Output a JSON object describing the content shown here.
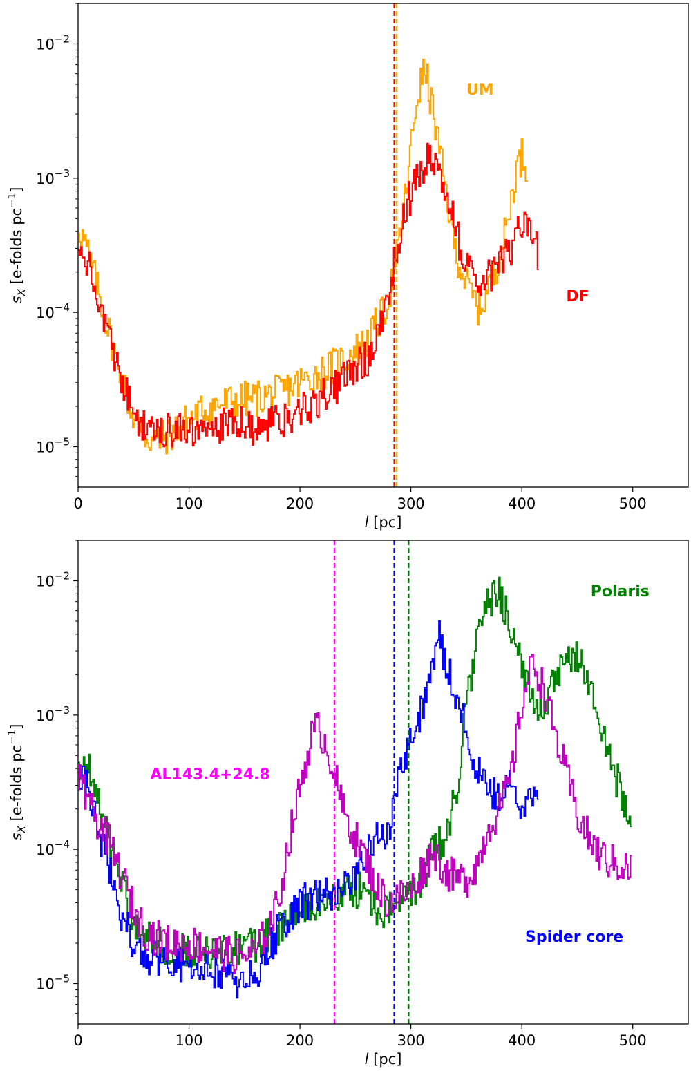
{
  "chart_data": [
    {
      "type": "line",
      "panel": "top",
      "xlabel": "l [pc]",
      "ylabel": "s_X [e-folds pc^-1]",
      "yscale": "log",
      "xlim": [
        0,
        550
      ],
      "ylim": [
        5e-06,
        0.02
      ],
      "xticks": [
        "0",
        "100",
        "200",
        "300",
        "400",
        "500"
      ],
      "yticks": [
        {
          "base": "10",
          "exp": "−2",
          "value": 0.01
        },
        {
          "base": "10",
          "exp": "−3",
          "value": 0.001
        },
        {
          "base": "10",
          "exp": "−4",
          "value": 0.0001
        },
        {
          "base": "10",
          "exp": "−5",
          "value": 1e-05
        }
      ],
      "series": [
        {
          "name": "UM",
          "color": "#ffa500",
          "vline": 287,
          "label_at": [
            350,
            0.0046
          ],
          "x": [
            0,
            10,
            20,
            30,
            40,
            50,
            60,
            70,
            80,
            100,
            120,
            140,
            160,
            180,
            200,
            220,
            240,
            260,
            275,
            285,
            295,
            305,
            312,
            320,
            330,
            340,
            350,
            360,
            365,
            375,
            385,
            395,
            400,
            405
          ],
          "y": [
            0.00045,
            0.00025,
            0.00012,
            6e-05,
            3e-05,
            1.6e-05,
            1.2e-05,
            1.1e-05,
            1.2e-05,
            1.6e-05,
            2e-05,
            2.2e-05,
            2.3e-05,
            2.5e-05,
            3e-05,
            3.6e-05,
            4.5e-05,
            6e-05,
            0.0001,
            0.0002,
            0.0008,
            0.004,
            0.0065,
            0.003,
            0.0009,
            0.00028,
            0.00016,
            0.00011,
            0.00012,
            0.0002,
            0.0004,
            0.0012,
            0.0015,
            0.0011
          ]
        },
        {
          "name": "DF",
          "color": "#ff0000",
          "vline": 285,
          "label_at": [
            440,
            0.000133
          ],
          "x": [
            0,
            10,
            20,
            30,
            40,
            50,
            60,
            70,
            80,
            100,
            120,
            140,
            160,
            180,
            200,
            220,
            240,
            260,
            275,
            285,
            295,
            305,
            312,
            320,
            330,
            340,
            350,
            360,
            370,
            380,
            390,
            400,
            405,
            410,
            415
          ],
          "y": [
            0.0004,
            0.0002,
            0.0001,
            6e-05,
            3e-05,
            1.8e-05,
            1.4e-05,
            1.3e-05,
            1.4e-05,
            1.3e-05,
            1.4e-05,
            1.5e-05,
            1.4e-05,
            1.5e-05,
            1.8e-05,
            2.4e-05,
            3.2e-05,
            4.5e-05,
            9e-05,
            0.00025,
            0.0006,
            0.001,
            0.0013,
            0.0015,
            0.00085,
            0.0004,
            0.00022,
            0.00017,
            0.00018,
            0.00025,
            0.0003,
            0.00045,
            0.00045,
            0.0003,
            0.00028
          ]
        }
      ]
    },
    {
      "type": "line",
      "panel": "bottom",
      "xlabel": "l [pc]",
      "ylabel": "s_X [e-folds pc^-1]",
      "yscale": "log",
      "xlim": [
        0,
        550
      ],
      "ylim": [
        5e-06,
        0.02
      ],
      "xticks": [
        "0",
        "100",
        "200",
        "300",
        "400",
        "500"
      ],
      "yticks": [
        {
          "base": "10",
          "exp": "−2",
          "value": 0.01
        },
        {
          "base": "10",
          "exp": "−3",
          "value": 0.001
        },
        {
          "base": "10",
          "exp": "−4",
          "value": 0.0001
        },
        {
          "base": "10",
          "exp": "−5",
          "value": 1e-05
        }
      ],
      "series": [
        {
          "name": "Polaris",
          "color": "#008000",
          "vline": 298,
          "label_at": [
            462,
            0.0084
          ],
          "x": [
            0,
            10,
            20,
            30,
            40,
            50,
            60,
            70,
            80,
            100,
            120,
            140,
            160,
            180,
            200,
            220,
            240,
            260,
            270,
            280,
            290,
            300,
            310,
            320,
            330,
            340,
            350,
            360,
            370,
            380,
            390,
            400,
            410,
            420,
            430,
            440,
            450,
            460,
            470,
            480,
            490,
            495,
            498
          ],
          "y": [
            0.0004,
            0.0004,
            0.0002,
            0.0001,
            5e-05,
            3e-05,
            2.2e-05,
            2e-05,
            1.8e-05,
            1.8e-05,
            1.7e-05,
            1.8e-05,
            2e-05,
            2.5e-05,
            3.5e-05,
            4e-05,
            4.8e-05,
            5e-05,
            3.5e-05,
            3.5e-05,
            4e-05,
            4.8e-05,
            6e-05,
            0.0001,
            0.00012,
            0.00025,
            0.0013,
            0.004,
            0.007,
            0.008,
            0.0045,
            0.002,
            0.0013,
            0.0012,
            0.0018,
            0.0024,
            0.0028,
            0.0018,
            0.0008,
            0.00045,
            0.00025,
            0.00018,
            0.00013
          ]
        },
        {
          "name": "Spider core",
          "color": "#0000ff",
          "vline": 285,
          "label_at": [
            403,
            2.25e-05
          ],
          "x": [
            0,
            10,
            20,
            30,
            40,
            50,
            60,
            70,
            80,
            100,
            120,
            140,
            150,
            160,
            170,
            180,
            200,
            220,
            240,
            260,
            270,
            280,
            285,
            290,
            300,
            310,
            320,
            325,
            330,
            340,
            350,
            360,
            370,
            380,
            390,
            400,
            410,
            415
          ],
          "y": [
            0.0004,
            0.00025,
            0.00012,
            6e-05,
            3e-05,
            2e-05,
            1.6e-05,
            1.5e-05,
            1.4e-05,
            1.4e-05,
            1.3e-05,
            1.1e-05,
            1e-05,
            1.2e-05,
            1.7e-05,
            2.5e-05,
            4e-05,
            4.5e-05,
            5e-05,
            9e-05,
            0.00012,
            0.00015,
            0.00025,
            0.0004,
            0.0007,
            0.0012,
            0.0025,
            0.004,
            0.0025,
            0.0015,
            0.0007,
            0.0004,
            0.00025,
            0.00025,
            0.0003,
            0.00022,
            0.00022,
            0.0002
          ]
        },
        {
          "name": "AL143.4+24.8",
          "color": "#bf00bf",
          "vline": 231,
          "vline_color": "#ff00ff",
          "label_color": "#ff00ff",
          "label_at": [
            65,
            0.000365
          ],
          "x": [
            0,
            10,
            20,
            30,
            40,
            50,
            60,
            70,
            80,
            100,
            120,
            140,
            160,
            170,
            180,
            190,
            200,
            210,
            215,
            220,
            230,
            235,
            240,
            250,
            260,
            270,
            280,
            290,
            300,
            310,
            320,
            330,
            340,
            350,
            360,
            370,
            380,
            390,
            400,
            410,
            420,
            430,
            440,
            450,
            460,
            470,
            480,
            490,
            498
          ],
          "y": [
            0.00035,
            0.0002,
            0.00015,
            0.0001,
            6e-05,
            3.5e-05,
            2.5e-05,
            2.2e-05,
            2e-05,
            2e-05,
            1.8e-05,
            1.6e-05,
            1.7e-05,
            2.5e-05,
            4e-05,
            0.00012,
            0.0003,
            0.0007,
            0.0008,
            0.0007,
            0.0004,
            0.00025,
            0.00018,
            0.00012,
            8e-05,
            5e-05,
            4e-05,
            4.5e-05,
            5e-05,
            7e-05,
            0.0001,
            7e-05,
            6e-05,
            6e-05,
            8e-05,
            0.00015,
            0.0002,
            0.00035,
            0.0013,
            0.0025,
            0.0015,
            0.0007,
            0.00035,
            0.00018,
            0.00012,
            9e-05,
            8e-05,
            7.5e-05,
            7e-05
          ]
        }
      ]
    }
  ]
}
